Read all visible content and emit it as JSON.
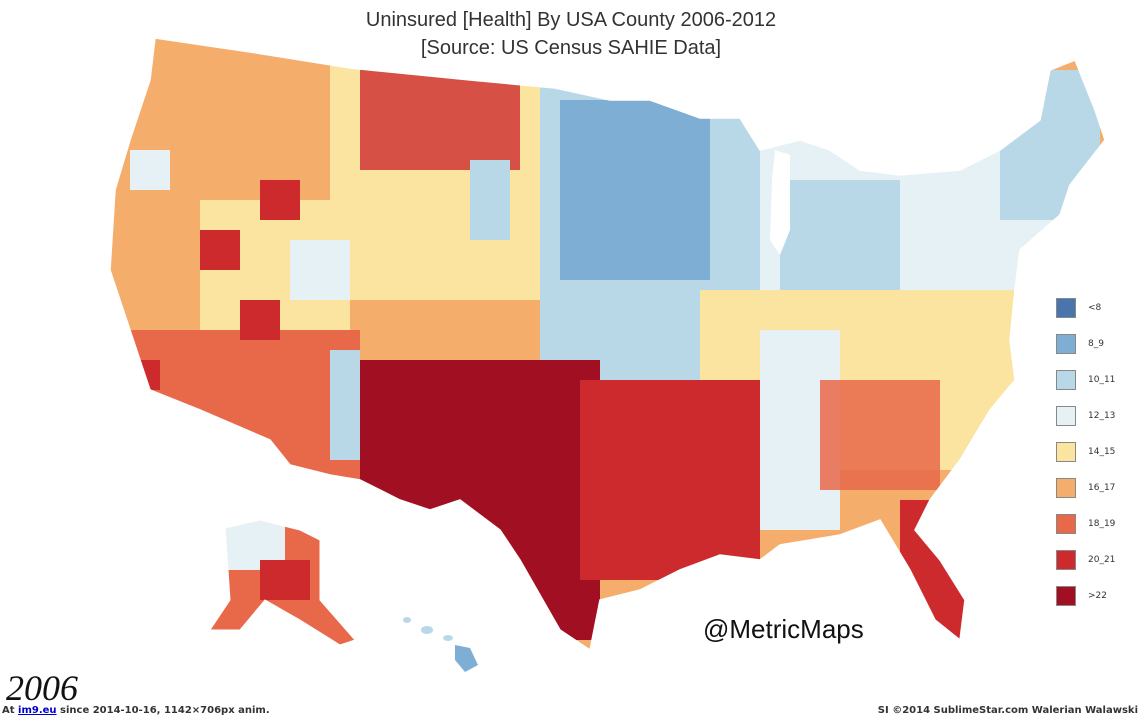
{
  "title": {
    "line1": "Uninsured [Health] By USA County 2006-2012",
    "line2": "[Source: US Census SAHIE Data]"
  },
  "legend": [
    {
      "label": "<8",
      "color": "#4a74ae"
    },
    {
      "label": "8_9",
      "color": "#7eaed3"
    },
    {
      "label": "10_11",
      "color": "#b8d8e8"
    },
    {
      "label": "12_13",
      "color": "#e6f1f5"
    },
    {
      "label": "14_15",
      "color": "#fbe3a0"
    },
    {
      "label": "16_17",
      "color": "#f5ad6c"
    },
    {
      "label": "18_19",
      "color": "#e8694a"
    },
    {
      "label": "20_21",
      "color": "#cd2a2e"
    },
    {
      "label": ">22",
      "color": "#a10f22"
    }
  ],
  "watermark": "@MetricMaps",
  "year": "2006",
  "footer": {
    "left_prefix": "At ",
    "left_link": "im9.eu",
    "left_suffix": " since 2014-10-16, 1142×706px anim.",
    "right": "SI ©2014 SublimeStar.com Walerian Walawski"
  }
}
